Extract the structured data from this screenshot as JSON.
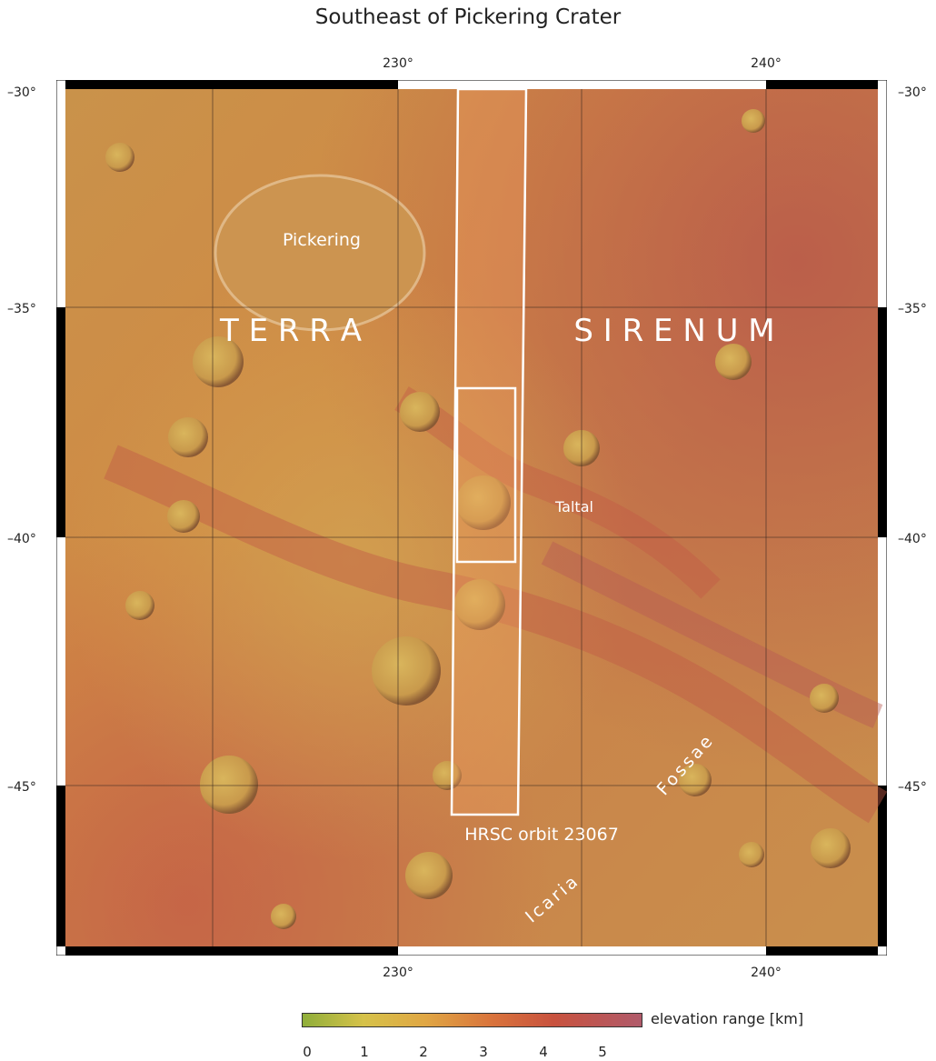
{
  "title": "Southeast of Pickering Crater",
  "grid": {
    "lon_labels": [
      "230°",
      "240°"
    ],
    "lat_labels": [
      "–30°",
      "–35°",
      "–40°",
      "–45°"
    ]
  },
  "map_labels": {
    "region_word_1": "T E R R A",
    "region_word_2": "S I R E N U M",
    "crater_pickering": "Pickering",
    "crater_taltal": "Taltal",
    "orbit": "HRSC orbit 23067",
    "icaria": "Icaria",
    "fossae": "Fossae"
  },
  "legend": {
    "title": "elevation range [km]",
    "ticks": [
      "0",
      "1",
      "2",
      "3",
      "4",
      "5"
    ],
    "colors": [
      "#8fae3a",
      "#d6c24a",
      "#e0a744",
      "#d9733c",
      "#c8523e",
      "#b05a6a"
    ]
  },
  "colors": {
    "low": "#c99a4a",
    "mid": "#d58845",
    "high": "#c25f46",
    "frame": "#000000",
    "overlay": "#ffffff"
  }
}
